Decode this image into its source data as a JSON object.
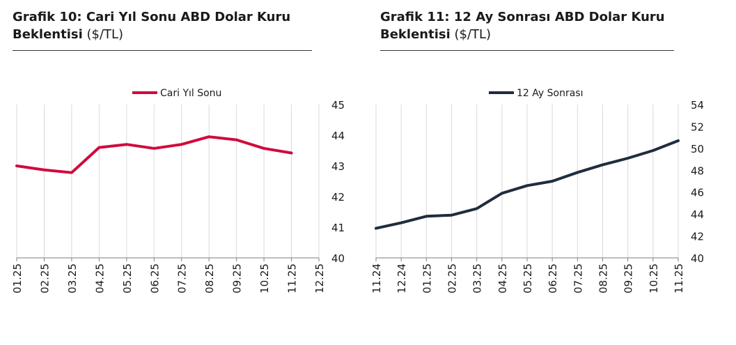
{
  "charts": [
    {
      "title_bold": "Grafik 10: Cari Yıl Sonu ABD Dolar Kuru Beklentisi",
      "title_normal": "($/TL)",
      "chart_data": {
        "type": "line",
        "categories": [
          "01.25",
          "02.25",
          "03.25",
          "04.25",
          "05.25",
          "06.25",
          "07.25",
          "08.25",
          "09.25",
          "10.25",
          "11.25",
          "12.25"
        ],
        "series": [
          {
            "name": "Cari Yıl Sonu",
            "color": "#d10a3c",
            "values": [
              43.0,
              42.87,
              42.78,
              43.6,
              43.7,
              43.57,
              43.7,
              43.95,
              43.85,
              43.57,
              43.42,
              null
            ]
          }
        ],
        "y_ticks": [
          40,
          41,
          42,
          43,
          44,
          45
        ],
        "ylim": [
          40,
          45
        ],
        "y_axis_side": "right",
        "grid": "vertical",
        "legend": "top-center"
      }
    },
    {
      "title_bold": "Grafik 11: 12 Ay Sonrası ABD Dolar Kuru Beklentisi",
      "title_normal": "($/TL)",
      "chart_data": {
        "type": "line",
        "categories": [
          "11.24",
          "12.24",
          "01.25",
          "02.25",
          "03.25",
          "04.25",
          "05.25",
          "06.25",
          "07.25",
          "08.25",
          "09.25",
          "10.25",
          "11.25"
        ],
        "series": [
          {
            "name": "12 Ay Sonrası",
            "color": "#1f2d3d",
            "values": [
              42.7,
              43.2,
              43.8,
              43.9,
              44.5,
              45.9,
              46.6,
              47.0,
              47.8,
              48.5,
              49.1,
              49.8,
              50.7
            ]
          }
        ],
        "y_ticks": [
          40,
          42,
          44,
          46,
          48,
          50,
          52,
          54
        ],
        "ylim": [
          40,
          54
        ],
        "y_axis_side": "right",
        "grid": "vertical",
        "legend": "top-center"
      }
    }
  ]
}
